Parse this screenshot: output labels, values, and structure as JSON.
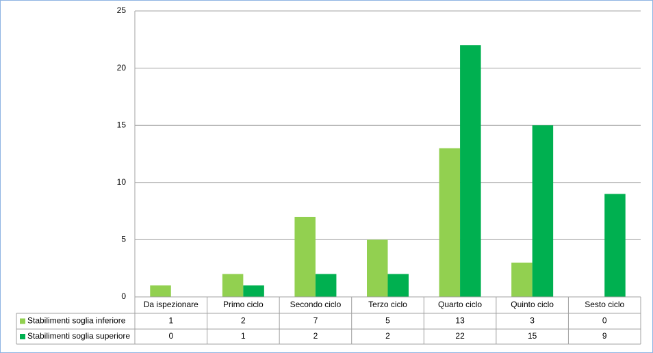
{
  "chart_data": {
    "type": "bar",
    "categories": [
      "Da ispezionare",
      "Primo ciclo",
      "Secondo ciclo",
      "Terzo ciclo",
      "Quarto ciclo",
      "Quinto ciclo",
      "Sesto ciclo"
    ],
    "series": [
      {
        "name": "Stabilimenti soglia inferiore",
        "color": "#92d050",
        "values": [
          1,
          2,
          7,
          5,
          13,
          3,
          0
        ]
      },
      {
        "name": "Stabilimenti soglia superiore",
        "color": "#00b050",
        "values": [
          0,
          1,
          2,
          2,
          22,
          15,
          9
        ]
      }
    ],
    "ylim": [
      0,
      25
    ],
    "yticks": [
      0,
      5,
      10,
      15,
      20,
      25
    ],
    "grid": true,
    "legend": "data-table"
  }
}
